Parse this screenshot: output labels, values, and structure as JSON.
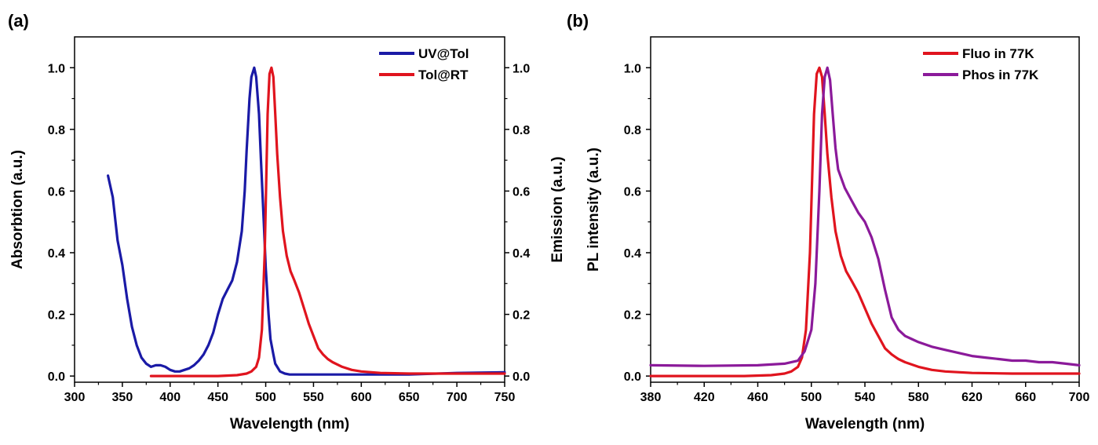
{
  "panels": [
    {
      "label": "(a)"
    },
    {
      "label": "(b)"
    }
  ],
  "chart_data": [
    {
      "type": "line",
      "panel": "(a)",
      "xlabel": "Wavelength (nm)",
      "ylabel": "Absorbtion (a.u.)",
      "y2label": "Emission (a.u.)",
      "xlim": [
        300,
        750
      ],
      "ylim": [
        -0.02,
        1.1
      ],
      "y2lim": [
        -0.02,
        1.1
      ],
      "xticks": [
        "300",
        "350",
        "400",
        "450",
        "500",
        "550",
        "600",
        "650",
        "700",
        "750"
      ],
      "yticks": [
        "0.0",
        "0.2",
        "0.4",
        "0.6",
        "0.8",
        "1.0"
      ],
      "y2ticks": [
        "0.0",
        "0.2",
        "0.4",
        "0.6",
        "0.8",
        "1.0"
      ],
      "legend_position": "top-right",
      "series": [
        {
          "name": "UV@Tol",
          "color": "#1a1aa6",
          "axis": "left",
          "x": [
            335,
            340,
            345,
            350,
            355,
            360,
            365,
            370,
            375,
            380,
            385,
            390,
            395,
            400,
            405,
            410,
            415,
            420,
            425,
            430,
            435,
            440,
            445,
            450,
            455,
            460,
            465,
            470,
            475,
            478,
            480,
            483,
            485,
            488,
            490,
            493,
            495,
            498,
            500,
            503,
            505,
            508,
            510,
            515,
            520,
            525,
            530,
            540,
            550,
            600,
            650,
            700,
            750
          ],
          "y": [
            0.65,
            0.58,
            0.44,
            0.36,
            0.25,
            0.16,
            0.1,
            0.06,
            0.04,
            0.03,
            0.035,
            0.035,
            0.03,
            0.02,
            0.015,
            0.015,
            0.02,
            0.025,
            0.035,
            0.05,
            0.07,
            0.1,
            0.14,
            0.2,
            0.25,
            0.28,
            0.31,
            0.37,
            0.47,
            0.6,
            0.73,
            0.9,
            0.97,
            1.0,
            0.97,
            0.85,
            0.7,
            0.5,
            0.35,
            0.2,
            0.12,
            0.07,
            0.04,
            0.015,
            0.008,
            0.005,
            0.005,
            0.005,
            0.005,
            0.005,
            0.005,
            0.01,
            0.012
          ]
        },
        {
          "name": "Tol@RT",
          "color": "#e0141e",
          "axis": "right",
          "x": [
            380,
            450,
            470,
            480,
            485,
            490,
            493,
            496,
            499,
            502,
            504,
            506,
            508,
            510,
            512,
            515,
            518,
            522,
            526,
            530,
            535,
            540,
            545,
            550,
            555,
            560,
            565,
            570,
            580,
            590,
            600,
            620,
            650,
            700,
            750
          ],
          "y": [
            0.0,
            0.0,
            0.003,
            0.008,
            0.015,
            0.03,
            0.06,
            0.15,
            0.4,
            0.85,
            0.98,
            1.0,
            0.97,
            0.85,
            0.72,
            0.58,
            0.47,
            0.39,
            0.34,
            0.31,
            0.27,
            0.22,
            0.17,
            0.13,
            0.09,
            0.07,
            0.055,
            0.045,
            0.03,
            0.02,
            0.015,
            0.01,
            0.008,
            0.008,
            0.008
          ]
        }
      ]
    },
    {
      "type": "line",
      "panel": "(b)",
      "xlabel": "Wavelength (nm)",
      "ylabel": "PL intensity (a.u.)",
      "xlim": [
        380,
        700
      ],
      "ylim": [
        -0.02,
        1.1
      ],
      "xticks": [
        "380",
        "420",
        "460",
        "500",
        "540",
        "580",
        "620",
        "660",
        "700"
      ],
      "yticks": [
        "0.0",
        "0.2",
        "0.4",
        "0.6",
        "0.8",
        "1.0"
      ],
      "legend_position": "top-right",
      "series": [
        {
          "name": "Fluo in 77K",
          "color": "#e0141e",
          "x": [
            380,
            450,
            470,
            480,
            485,
            490,
            493,
            496,
            499,
            502,
            504,
            506,
            508,
            510,
            512,
            515,
            518,
            522,
            526,
            530,
            535,
            540,
            545,
            550,
            555,
            560,
            565,
            570,
            580,
            590,
            600,
            620,
            650,
            700
          ],
          "y": [
            0.0,
            0.0,
            0.003,
            0.008,
            0.015,
            0.03,
            0.06,
            0.15,
            0.4,
            0.85,
            0.98,
            1.0,
            0.97,
            0.85,
            0.72,
            0.58,
            0.47,
            0.39,
            0.34,
            0.31,
            0.27,
            0.22,
            0.17,
            0.13,
            0.09,
            0.07,
            0.055,
            0.045,
            0.03,
            0.02,
            0.015,
            0.01,
            0.008,
            0.008
          ]
        },
        {
          "name": "Phos in 77K",
          "color": "#8b1a9a",
          "x": [
            380,
            420,
            460,
            480,
            490,
            495,
            500,
            503,
            506,
            508,
            510,
            512,
            514,
            516,
            518,
            520,
            525,
            530,
            535,
            540,
            545,
            550,
            555,
            560,
            565,
            570,
            575,
            580,
            590,
            600,
            610,
            620,
            630,
            640,
            650,
            660,
            670,
            680,
            690,
            700
          ],
          "y": [
            0.035,
            0.033,
            0.035,
            0.04,
            0.05,
            0.08,
            0.15,
            0.3,
            0.6,
            0.85,
            0.97,
            1.0,
            0.96,
            0.85,
            0.74,
            0.67,
            0.61,
            0.57,
            0.53,
            0.5,
            0.45,
            0.38,
            0.28,
            0.19,
            0.15,
            0.13,
            0.12,
            0.11,
            0.095,
            0.085,
            0.075,
            0.065,
            0.06,
            0.055,
            0.05,
            0.05,
            0.045,
            0.045,
            0.04,
            0.035
          ]
        }
      ]
    }
  ]
}
